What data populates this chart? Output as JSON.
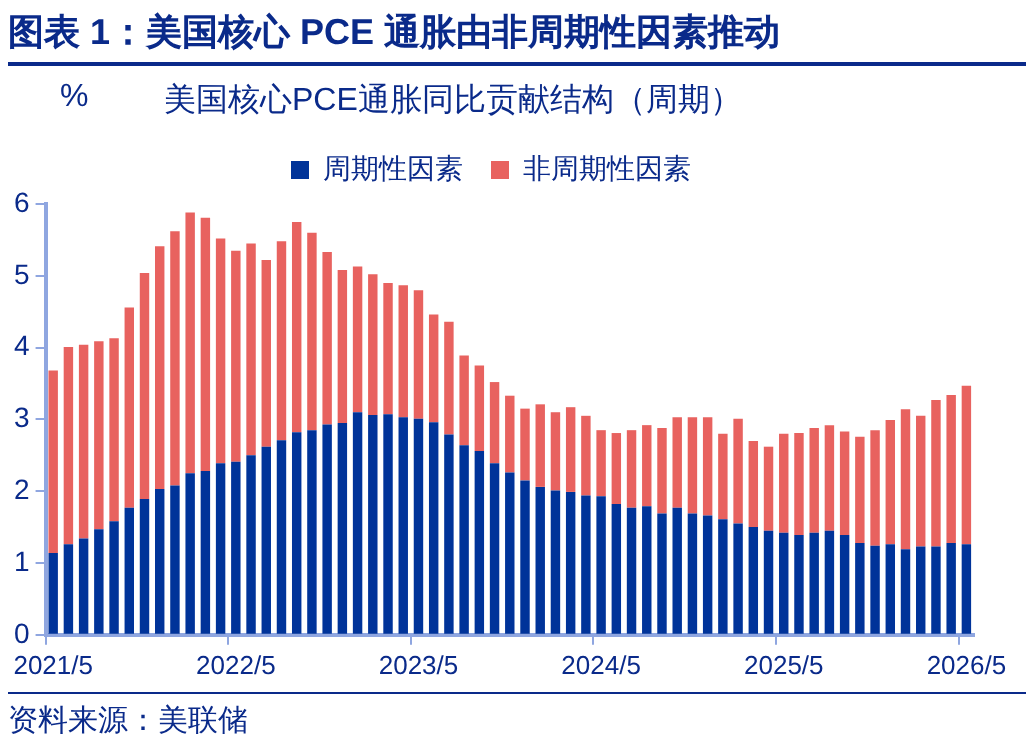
{
  "chart_data": {
    "type": "bar",
    "title": "图表 1：美国核心 PCE 通胀由非周期性因素推动",
    "subtitle": "美国核心PCE通胀同比贡献结构（周期）",
    "ylabel": "%",
    "annotations": [
      "资料来源：美联储"
    ],
    "categories": [
      "2021/5",
      null,
      null,
      null,
      null,
      null,
      null,
      null,
      null,
      null,
      null,
      null,
      "2022/5",
      null,
      null,
      null,
      null,
      null,
      null,
      null,
      null,
      null,
      null,
      null,
      "2023/5",
      null,
      null,
      null,
      null,
      null,
      null,
      null,
      null,
      null,
      null,
      null,
      "2024/5",
      null,
      null,
      null,
      null,
      null,
      null,
      null,
      null,
      null,
      null,
      null,
      "2025/5",
      null,
      null,
      null,
      null,
      null,
      null,
      null,
      null,
      null,
      null,
      null,
      "2026/5"
    ],
    "stacked": true,
    "series": [
      {
        "name": "周期性因素",
        "color": "#003399",
        "values": [
          1.14,
          1.26,
          1.34,
          1.47,
          1.58,
          1.77,
          1.89,
          2.03,
          2.08,
          2.25,
          2.28,
          2.39,
          2.41,
          2.5,
          2.62,
          2.71,
          2.82,
          2.85,
          2.93,
          2.95,
          3.1,
          3.06,
          3.07,
          3.03,
          3.01,
          2.96,
          2.79,
          2.64,
          2.56,
          2.39,
          2.26,
          2.15,
          2.06,
          2.01,
          1.99,
          1.94,
          1.93,
          1.82,
          1.77,
          1.79,
          1.69,
          1.77,
          1.69,
          1.66,
          1.61,
          1.55,
          1.5,
          1.45,
          1.42,
          1.39,
          1.42,
          1.45,
          1.39,
          1.28,
          1.24,
          1.26,
          1.19,
          1.23,
          1.23,
          1.28,
          1.26
        ]
      },
      {
        "name": "非周期性因素",
        "color": "#e8625f",
        "values": [
          2.54,
          2.75,
          2.7,
          2.62,
          2.55,
          2.79,
          3.15,
          3.38,
          3.54,
          3.63,
          3.53,
          3.13,
          2.94,
          2.95,
          2.6,
          2.77,
          2.93,
          2.75,
          2.4,
          2.13,
          2.03,
          1.96,
          1.83,
          1.84,
          1.79,
          1.5,
          1.57,
          1.25,
          1.19,
          1.13,
          1.07,
          1.0,
          1.15,
          1.09,
          1.18,
          1.11,
          0.92,
          0.99,
          1.08,
          1.13,
          1.19,
          1.26,
          1.34,
          1.37,
          1.19,
          1.46,
          1.2,
          1.17,
          1.38,
          1.42,
          1.46,
          1.47,
          1.44,
          1.48,
          1.61,
          1.73,
          1.95,
          1.82,
          2.04,
          2.06,
          2.21
        ]
      }
    ],
    "ylim": [
      0,
      6
    ],
    "yticks": [
      0,
      1,
      2,
      3,
      4,
      5,
      6
    ],
    "grid": false,
    "legend": "top"
  }
}
